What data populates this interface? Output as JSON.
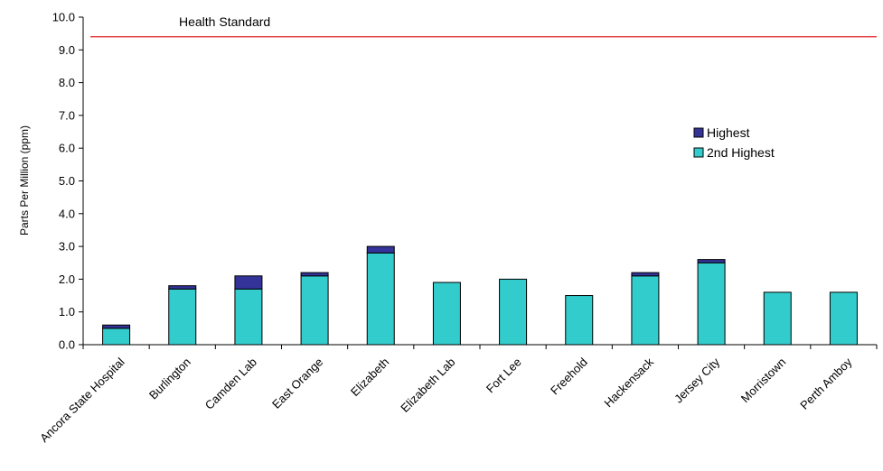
{
  "chart_data": {
    "type": "bar",
    "stacked": true,
    "title": "",
    "xlabel": "",
    "ylabel": "Parts Per Million (ppm)",
    "ylim": [
      0,
      10
    ],
    "ytick_step": 1,
    "categories": [
      "Ancora State Hospital",
      "Burlington",
      "Camden Lab",
      "East Orange",
      "Elizabeth",
      "Elizabeth Lab",
      "Fort Lee",
      "Freehold",
      "Hackensack",
      "Jersey City",
      "Morristown",
      "Perth Amboy"
    ],
    "series": [
      {
        "name": "2nd Highest",
        "color": "#33cccc",
        "values": [
          0.5,
          1.7,
          1.7,
          2.1,
          2.8,
          1.9,
          2.0,
          1.5,
          2.1,
          2.5,
          1.6,
          1.6
        ]
      },
      {
        "name": "Highest",
        "color": "#333399",
        "values": [
          0.1,
          0.1,
          0.4,
          0.1,
          0.2,
          0.0,
          0.0,
          0.0,
          0.1,
          0.1,
          0.0,
          0.0
        ]
      }
    ],
    "reference_line": {
      "label": "Health Standard",
      "value": 9.4,
      "color": "#e02020"
    },
    "legend": {
      "placement": "right",
      "order": [
        "Highest",
        "2nd Highest"
      ]
    },
    "grid": false
  }
}
